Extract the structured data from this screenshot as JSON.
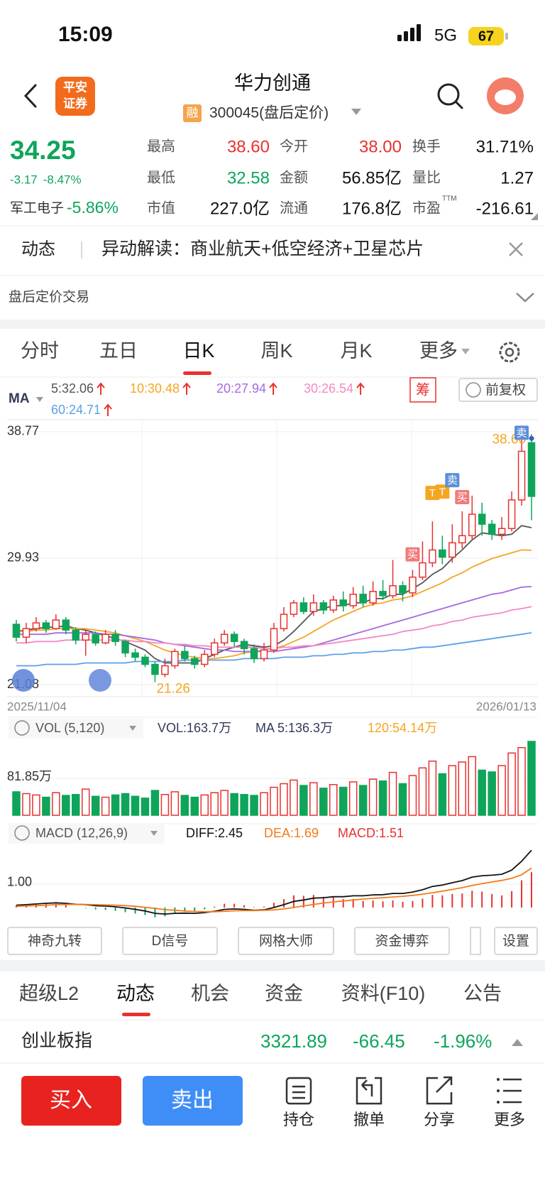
{
  "status": {
    "time": "15:09",
    "network": "5G",
    "battery": "67"
  },
  "header": {
    "logo": [
      "平安",
      "证券"
    ],
    "title": "华力创通",
    "badge": "融",
    "code": "300045(盘后定价)"
  },
  "quote": {
    "price": "34.25",
    "change": "-3.17",
    "change_pct": "-8.47%",
    "sector": "军工电子",
    "sector_pct": "-5.86%",
    "fields": [
      {
        "label": "最高",
        "value": "38.60",
        "color": "#e8312f"
      },
      {
        "label": "今开",
        "value": "38.00",
        "color": "#e8312f"
      },
      {
        "label": "换手",
        "value": "31.71%",
        "color": "#111"
      },
      {
        "label": "最低",
        "value": "32.58",
        "color": "#0ea55b"
      },
      {
        "label": "金额",
        "value": "56.85亿",
        "color": "#111"
      },
      {
        "label": "量比",
        "value": "1.27",
        "color": "#111"
      },
      {
        "label": "市值",
        "value": "227.0亿",
        "color": "#111"
      },
      {
        "label": "流通",
        "value": "176.8亿",
        "color": "#111"
      },
      {
        "label": "市盈",
        "sup": "TTM",
        "value": "-216.61",
        "color": "#111"
      }
    ]
  },
  "news": {
    "tag": "动态",
    "text": "异动解读：商业航天+低空经济+卫星芯片"
  },
  "after_hours": "盘后定价交易",
  "tabs": [
    "分时",
    "五日",
    "日K",
    "周K",
    "月K",
    "更多"
  ],
  "kline": {
    "ma_label": "MA",
    "chip": "筹",
    "adjust": "前复权",
    "ma": [
      {
        "label": "5:32.06",
        "color": "#555555",
        "values": [
          24.8,
          24.9,
          25.0,
          25.1,
          25.1,
          25.2,
          25.0,
          24.9,
          24.7,
          24.5,
          24.3,
          24.1,
          23.8,
          23.5,
          22.9,
          22.6,
          22.6,
          22.6,
          22.6,
          22.9,
          23.2,
          23.5,
          23.7,
          23.9,
          23.8,
          23.7,
          23.8,
          24.2,
          24.8,
          25.5,
          26.2,
          26.4,
          26.6,
          26.6,
          26.8,
          26.8,
          27.1,
          27.1,
          27.4,
          27.4,
          27.8,
          28.2,
          28.8,
          29.2,
          29.9,
          30.5,
          31.2,
          31.7,
          31.6,
          31.5,
          31.6,
          32.2,
          32.06
        ]
      },
      {
        "label": "10:30.48",
        "color": "#f4a623",
        "values": [
          24.8,
          24.8,
          24.9,
          24.9,
          25.0,
          25.0,
          25.0,
          25.0,
          24.9,
          24.8,
          24.7,
          24.5,
          24.3,
          24.1,
          23.8,
          23.5,
          23.3,
          23.1,
          23.0,
          22.9,
          22.9,
          23.0,
          23.1,
          23.3,
          23.4,
          23.5,
          23.6,
          23.8,
          24.1,
          24.4,
          24.8,
          25.2,
          25.6,
          25.9,
          26.2,
          26.5,
          26.7,
          26.8,
          27.0,
          27.1,
          27.3,
          27.6,
          27.9,
          28.2,
          28.6,
          28.9,
          29.3,
          29.6,
          29.9,
          30.1,
          30.3,
          30.5,
          30.48
        ]
      },
      {
        "label": "20:27.94",
        "color": "#a66be0",
        "values": [
          24.6,
          24.6,
          24.6,
          24.6,
          24.7,
          24.7,
          24.7,
          24.7,
          24.7,
          24.6,
          24.6,
          24.5,
          24.4,
          24.3,
          24.2,
          24.0,
          23.9,
          23.8,
          23.7,
          23.6,
          23.5,
          23.5,
          23.4,
          23.4,
          23.4,
          23.4,
          23.4,
          23.5,
          23.6,
          23.7,
          23.8,
          24.0,
          24.2,
          24.4,
          24.6,
          24.8,
          25.0,
          25.2,
          25.4,
          25.6,
          25.8,
          26.0,
          26.2,
          26.4,
          26.6,
          26.8,
          27.0,
          27.2,
          27.4,
          27.5,
          27.7,
          27.9,
          27.94
        ]
      },
      {
        "label": "30:26.54",
        "color": "#f28ac4",
        "values": [
          24.0,
          24.0,
          24.1,
          24.1,
          24.1,
          24.2,
          24.2,
          24.2,
          24.2,
          24.2,
          24.2,
          24.2,
          24.1,
          24.1,
          24.0,
          24.0,
          23.9,
          23.9,
          23.8,
          23.8,
          23.7,
          23.7,
          23.7,
          23.7,
          23.7,
          23.6,
          23.6,
          23.7,
          23.7,
          23.8,
          23.8,
          23.9,
          24.0,
          24.1,
          24.2,
          24.3,
          24.4,
          24.5,
          24.6,
          24.8,
          24.9,
          25.0,
          25.2,
          25.3,
          25.5,
          25.6,
          25.8,
          25.9,
          26.0,
          26.1,
          26.3,
          26.4,
          26.54
        ]
      },
      {
        "label": "60:24.71",
        "color": "#5aa0e8",
        "values": [
          22.4,
          22.4,
          22.4,
          22.5,
          22.5,
          22.5,
          22.5,
          22.6,
          22.6,
          22.6,
          22.6,
          22.6,
          22.7,
          22.7,
          22.7,
          22.7,
          22.7,
          22.8,
          22.8,
          22.8,
          22.8,
          22.8,
          22.8,
          22.9,
          22.9,
          22.9,
          22.9,
          23.0,
          23.0,
          23.0,
          23.1,
          23.1,
          23.2,
          23.2,
          23.3,
          23.3,
          23.4,
          23.4,
          23.5,
          23.5,
          23.6,
          23.7,
          23.7,
          23.8,
          23.9,
          24.0,
          24.1,
          24.2,
          24.3,
          24.4,
          24.5,
          24.6,
          24.71
        ]
      }
    ],
    "ylim": [
      20.24,
      39.61
    ],
    "yticks": [
      38.77,
      29.93,
      21.08
    ],
    "dates": [
      "2025/11/04",
      "2026/01/13"
    ],
    "high_label": "38.60",
    "low_label": "21.26",
    "up_color": "#e8312f",
    "down_color": "#0ea55b",
    "open": [
      25.3,
      24.4,
      25.0,
      25.4,
      25.0,
      25.6,
      24.9,
      24.2,
      24.6,
      24.0,
      24.6,
      24.1,
      23.3,
      23.0,
      22.5,
      21.8,
      22.4,
      23.4,
      22.9,
      22.5,
      23.2,
      24.0,
      24.6,
      24.1,
      23.6,
      22.9,
      23.5,
      25.0,
      26.0,
      26.8,
      26.2,
      26.8,
      26.3,
      27.0,
      26.6,
      27.4,
      26.8,
      27.6,
      27.3,
      28.0,
      27.5,
      28.6,
      29.6,
      30.5,
      30.0,
      31.0,
      31.5,
      33.0,
      32.3,
      31.6,
      32.0,
      34.0,
      38.0
    ],
    "close": [
      24.4,
      25.0,
      25.4,
      25.0,
      25.6,
      24.9,
      24.2,
      24.6,
      24.0,
      24.6,
      24.1,
      23.3,
      23.0,
      22.5,
      21.8,
      22.4,
      23.4,
      22.9,
      22.5,
      23.2,
      24.0,
      24.6,
      24.1,
      23.6,
      22.9,
      23.5,
      25.0,
      26.0,
      26.8,
      26.2,
      26.8,
      26.3,
      27.0,
      26.6,
      27.4,
      26.8,
      27.6,
      27.3,
      28.0,
      27.5,
      28.6,
      29.6,
      30.5,
      30.0,
      31.0,
      31.5,
      33.0,
      32.3,
      31.6,
      32.0,
      34.0,
      37.4,
      34.25
    ],
    "high": [
      25.6,
      25.4,
      25.8,
      25.6,
      26.0,
      25.8,
      25.1,
      24.9,
      24.8,
      24.9,
      24.9,
      24.2,
      23.6,
      23.2,
      22.7,
      22.9,
      23.6,
      23.8,
      23.1,
      23.5,
      24.3,
      24.9,
      24.8,
      24.3,
      23.9,
      24.0,
      25.4,
      26.5,
      27.0,
      27.2,
      27.4,
      27.0,
      27.3,
      27.6,
      27.9,
      28.0,
      28.3,
      28.4,
      29.8,
      28.3,
      29.1,
      31.1,
      32.5,
      31.5,
      32.3,
      33.2,
      34.3,
      33.8,
      32.6,
      32.8,
      34.6,
      38.2,
      38.6
    ],
    "low": [
      24.1,
      24.0,
      24.8,
      24.7,
      24.9,
      24.6,
      23.9,
      23.1,
      23.8,
      23.9,
      23.8,
      23.0,
      22.7,
      22.3,
      21.26,
      21.6,
      22.2,
      22.7,
      22.2,
      22.3,
      23.0,
      23.8,
      23.7,
      23.2,
      22.6,
      22.7,
      23.3,
      24.8,
      25.8,
      26.0,
      25.9,
      26.0,
      26.1,
      26.2,
      26.4,
      26.5,
      26.6,
      27.0,
      27.1,
      26.9,
      27.2,
      28.4,
      29.3,
      29.5,
      29.6,
      30.6,
      31.2,
      31.5,
      31.2,
      31.2,
      31.8,
      33.6,
      32.58
    ],
    "trade_marks": [
      "买",
      "T",
      "T",
      "卖",
      "买",
      "卖"
    ]
  },
  "volume": {
    "title": "VOL (5,120)",
    "label": "VOL:163.7万",
    "ma5": "MA  5:136.3万",
    "ma120": "120:54.14万",
    "ylim": [
      0,
      170
    ],
    "yticks": [
      {
        "value": 81.85,
        "label": "81.85万"
      }
    ],
    "values": [
      52,
      48,
      45,
      40,
      50,
      44,
      46,
      58,
      42,
      40,
      45,
      48,
      42,
      38,
      55,
      46,
      52,
      44,
      40,
      45,
      50,
      55,
      48,
      46,
      44,
      50,
      62,
      70,
      78,
      66,
      72,
      60,
      68,
      62,
      74,
      66,
      80,
      76,
      95,
      70,
      88,
      105,
      120,
      92,
      110,
      118,
      130,
      100,
      96,
      110,
      138,
      150,
      163.7
    ]
  },
  "macd": {
    "title": "MACD (12,26,9)",
    "diff_label": "DIFF:2.45",
    "dea_label": "DEA:1.69",
    "macd_label": "MACD:1.51",
    "ylim": [
      -0.55,
      2.79
    ],
    "yticks": [
      {
        "value": 1,
        "label": "1.00"
      }
    ],
    "diff": [
      0.1,
      0.12,
      0.15,
      0.18,
      0.2,
      0.18,
      0.14,
      0.12,
      0.08,
      0.06,
      0.03,
      -0.02,
      -0.08,
      -0.15,
      -0.25,
      -0.28,
      -0.25,
      -0.24,
      -0.25,
      -0.22,
      -0.16,
      -0.08,
      -0.06,
      -0.08,
      -0.12,
      -0.1,
      0,
      0.12,
      0.26,
      0.32,
      0.4,
      0.42,
      0.46,
      0.46,
      0.5,
      0.5,
      0.54,
      0.55,
      0.6,
      0.6,
      0.66,
      0.76,
      0.9,
      0.96,
      1.06,
      1.15,
      1.3,
      1.36,
      1.38,
      1.42,
      1.6,
      1.98,
      2.45
    ],
    "dea": [
      0.05,
      0.07,
      0.08,
      0.1,
      0.12,
      0.13,
      0.14,
      0.13,
      0.12,
      0.11,
      0.1,
      0.08,
      0.05,
      0.01,
      -0.04,
      -0.09,
      -0.12,
      -0.15,
      -0.17,
      -0.18,
      -0.18,
      -0.16,
      -0.14,
      -0.13,
      -0.13,
      -0.12,
      -0.1,
      -0.06,
      0,
      0.07,
      0.13,
      0.19,
      0.24,
      0.28,
      0.32,
      0.36,
      0.39,
      0.42,
      0.45,
      0.48,
      0.52,
      0.57,
      0.63,
      0.7,
      0.77,
      0.85,
      0.94,
      1.02,
      1.09,
      1.16,
      1.25,
      1.4,
      1.69
    ],
    "hist": [
      0.1,
      0.1,
      0.14,
      0.16,
      0.16,
      0.1,
      0,
      -0.02,
      -0.08,
      -0.1,
      -0.14,
      -0.2,
      -0.26,
      -0.32,
      -0.42,
      -0.38,
      -0.26,
      -0.18,
      -0.16,
      -0.08,
      0.04,
      0.16,
      0.16,
      0.1,
      0.02,
      0.04,
      0.2,
      0.36,
      0.52,
      0.5,
      0.54,
      0.46,
      0.44,
      0.36,
      0.36,
      0.28,
      0.3,
      0.26,
      0.3,
      0.24,
      0.28,
      0.38,
      0.54,
      0.52,
      0.58,
      0.6,
      0.72,
      0.68,
      0.58,
      0.52,
      0.7,
      1.16,
      1.51
    ]
  },
  "tools": [
    "神奇九转",
    "D信号",
    "网格大师",
    "资金博弈"
  ],
  "settings": "设置",
  "bottom_tabs": [
    "超级L2",
    "动态",
    "机会",
    "资金",
    "资料(F10)",
    "公告"
  ],
  "index": {
    "name": "创业板指",
    "value": "3321.89",
    "change": "-66.45",
    "pct": "-1.96%"
  },
  "actions": {
    "buy": "买入",
    "sell": "卖出",
    "items": [
      "持仓",
      "撤单",
      "分享",
      "更多"
    ]
  }
}
